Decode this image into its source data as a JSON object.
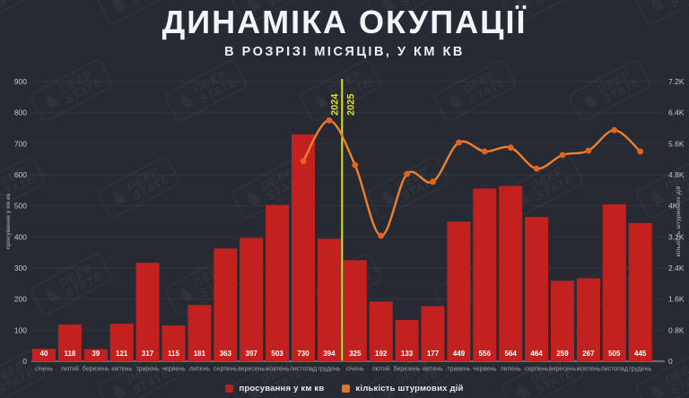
{
  "header": {
    "title": "ДИНАМІКА ОКУПАЦІЇ",
    "subtitle": "В РОЗРІЗІ МІСЯЦІВ, У КМ КВ"
  },
  "watermark": {
    "line1": "DEEP",
    "line2": "STATE"
  },
  "colors": {
    "background": "#272a32",
    "bar_red": "#c2211f",
    "line_orange": "#ee8031",
    "dot_orange": "#e3641f",
    "divider_yellow": "#dde02b",
    "axis_text": "#c3c7cd",
    "month_text": "#9aa1a8"
  },
  "chart_data": {
    "type": "bar",
    "title": "ДИНАМІКА ОКУПАЦІЇ",
    "subtitle": "В РОЗРІЗІ МІСЯЦІВ, У КМ КВ",
    "categories": [
      "січень",
      "лютий",
      "березень",
      "квітень",
      "травень",
      "червень",
      "липень",
      "серпень",
      "вересень",
      "жовтень",
      "листопад",
      "грудень",
      "січень",
      "лютий",
      "березень",
      "квітень",
      "травень",
      "червень",
      "липень",
      "серпень",
      "вересень",
      "жовтень",
      "листопад",
      "грудень"
    ],
    "year_divider": {
      "left_label": "2024",
      "right_label": "2025",
      "between_index": 11
    },
    "series": [
      {
        "name": "просування у км кв",
        "type": "bar",
        "axis": "left",
        "color": "#c2211f",
        "values": [
          40,
          118,
          39,
          121,
          317,
          115,
          181,
          363,
          397,
          503,
          730,
          394,
          325,
          192,
          133,
          177,
          449,
          556,
          564,
          464,
          259,
          267,
          505,
          445
        ]
      },
      {
        "name": "кількість штурмових дій",
        "type": "line",
        "axis": "right",
        "color": "#ee8031",
        "dot_color": "#e3641f",
        "start_index": 10,
        "values": [
          5150,
          6200,
          5050,
          3230,
          4820,
          4620,
          5630,
          5400,
          5500,
          4960,
          5310,
          5420,
          5950,
          5400
        ]
      }
    ],
    "left_axis": {
      "title": "просування у км кв",
      "min": 0,
      "max": 900,
      "step": 100,
      "ticks": [
        "900",
        "800",
        "700",
        "600",
        "500",
        "400",
        "300",
        "200",
        "100",
        "0"
      ]
    },
    "right_axis": {
      "title": "кількість штурмових дій",
      "min": 0,
      "max": 7200,
      "step": 800,
      "ticks": [
        "7.2K",
        "6.4K",
        "5.6K",
        "4.8K",
        "4K",
        "3.2K",
        "2.4K",
        "1.6K",
        "0.8K",
        "0"
      ]
    },
    "legend_position": "bottom",
    "grid": true
  }
}
